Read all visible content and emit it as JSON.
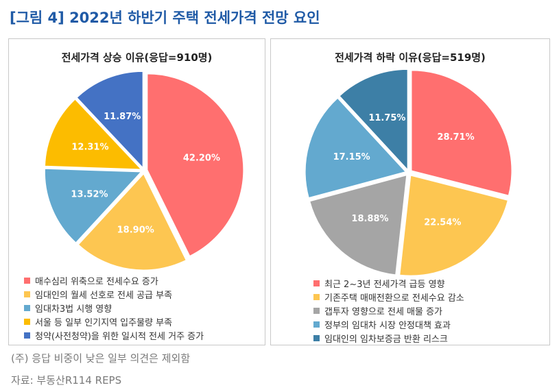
{
  "figure_title": "[그림 4] 2022년 하반기 주택 전세가격 전망 요인",
  "note": "(주) 응답 비중이 낮은 일부 의견은 제외함",
  "source": "자료: 부동산R114 REPS",
  "chart_data": [
    {
      "type": "pie",
      "title": "전세가격 상승 이유(응답=910명)",
      "slices": [
        {
          "label": "매수심리 위축으로 전세수요 증가",
          "value": 42.2,
          "display": "42.20%",
          "color": "#ff6f6f"
        },
        {
          "label": "임대인의 월세 선호로 전세 공급 부족",
          "value": 18.9,
          "display": "18.90%",
          "color": "#fdc651"
        },
        {
          "label": "임대차3법 시행 영향",
          "value": 13.52,
          "display": "13.52%",
          "color": "#63a9cf"
        },
        {
          "label": "서울 등 일부 인기지역 입주물량 부족",
          "value": 12.31,
          "display": "12.31%",
          "color": "#fcbc00"
        },
        {
          "label": "청약(사전청약)을 위한 일시적 전세 거주 증가",
          "value": 11.87,
          "display": "11.87%",
          "color": "#4472c4"
        }
      ]
    },
    {
      "type": "pie",
      "title": "전세가격 하락 이유(응답=519명)",
      "slices": [
        {
          "label": "최근 2~3년 전세가격 급등 영향",
          "value": 28.71,
          "display": "28.71%",
          "color": "#ff6f6f"
        },
        {
          "label": "기존주택 매매전환으로 전세수요 감소",
          "value": 22.54,
          "display": "22.54%",
          "color": "#fdc651"
        },
        {
          "label": "갭투자 영향으로 전세 매물 증가",
          "value": 18.88,
          "display": "18.88%",
          "color": "#a5a5a5"
        },
        {
          "label": "정부의 임대차 시장 안정대책 효과",
          "value": 17.15,
          "display": "17.15%",
          "color": "#63a9cf"
        },
        {
          "label": "임대인의 임차보증금 반환 리스크",
          "value": 11.75,
          "display": "11.75%",
          "color": "#3d7fa6"
        }
      ]
    }
  ]
}
